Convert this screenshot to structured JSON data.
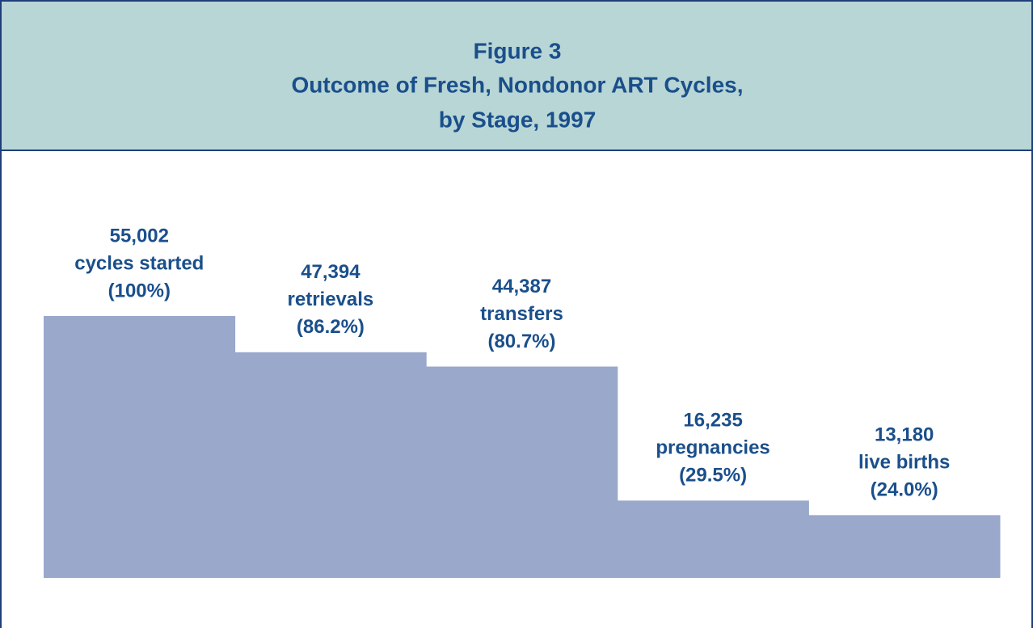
{
  "chart_data": {
    "type": "step-bar",
    "title": [
      "Figure 3",
      "Outcome of Fresh, Nondonor ART Cycles,",
      "by Stage, 1997"
    ],
    "categories": [
      "cycles started",
      "retrievals",
      "transfers",
      "pregnancies",
      "live births"
    ],
    "values": [
      55002,
      47394,
      44387,
      16235,
      13180
    ],
    "value_labels": [
      "55,002",
      "47,394",
      "44,387",
      "16,235",
      "13,180"
    ],
    "percent_labels": [
      "(100%)",
      "(86.2%)",
      "(80.7%)",
      "(29.5%)",
      "(24.0%)"
    ],
    "color": "#99a8cb",
    "ylim": [
      0,
      60000
    ]
  }
}
